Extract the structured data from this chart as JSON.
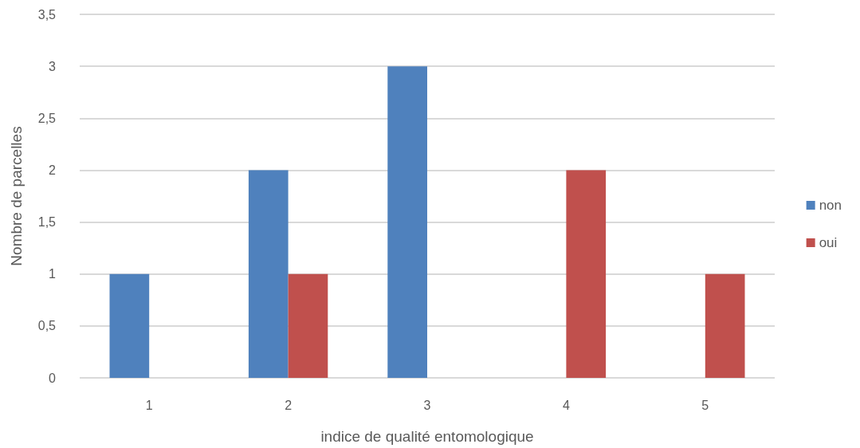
{
  "chart_data": {
    "type": "bar",
    "xlabel": "indice de qualité entomologique",
    "ylabel": "Nombre de parcelles",
    "categories": [
      "1",
      "2",
      "3",
      "4",
      "5"
    ],
    "series": [
      {
        "name": "non",
        "color": "#4f81bd",
        "values": [
          1,
          2,
          3,
          null,
          null
        ]
      },
      {
        "name": "oui",
        "color": "#c0504d",
        "values": [
          null,
          1,
          null,
          2,
          1
        ]
      }
    ],
    "ylim": [
      0,
      3.5
    ],
    "yticks": [
      0,
      {
        "value": 0.5,
        "label": "0,5"
      },
      1,
      {
        "value": 1.5,
        "label": "1,5"
      },
      2,
      {
        "value": 2.5,
        "label": "2,5"
      },
      3,
      {
        "value": 3.5,
        "label": "3,5"
      }
    ],
    "grid": "y",
    "legend": "right"
  }
}
